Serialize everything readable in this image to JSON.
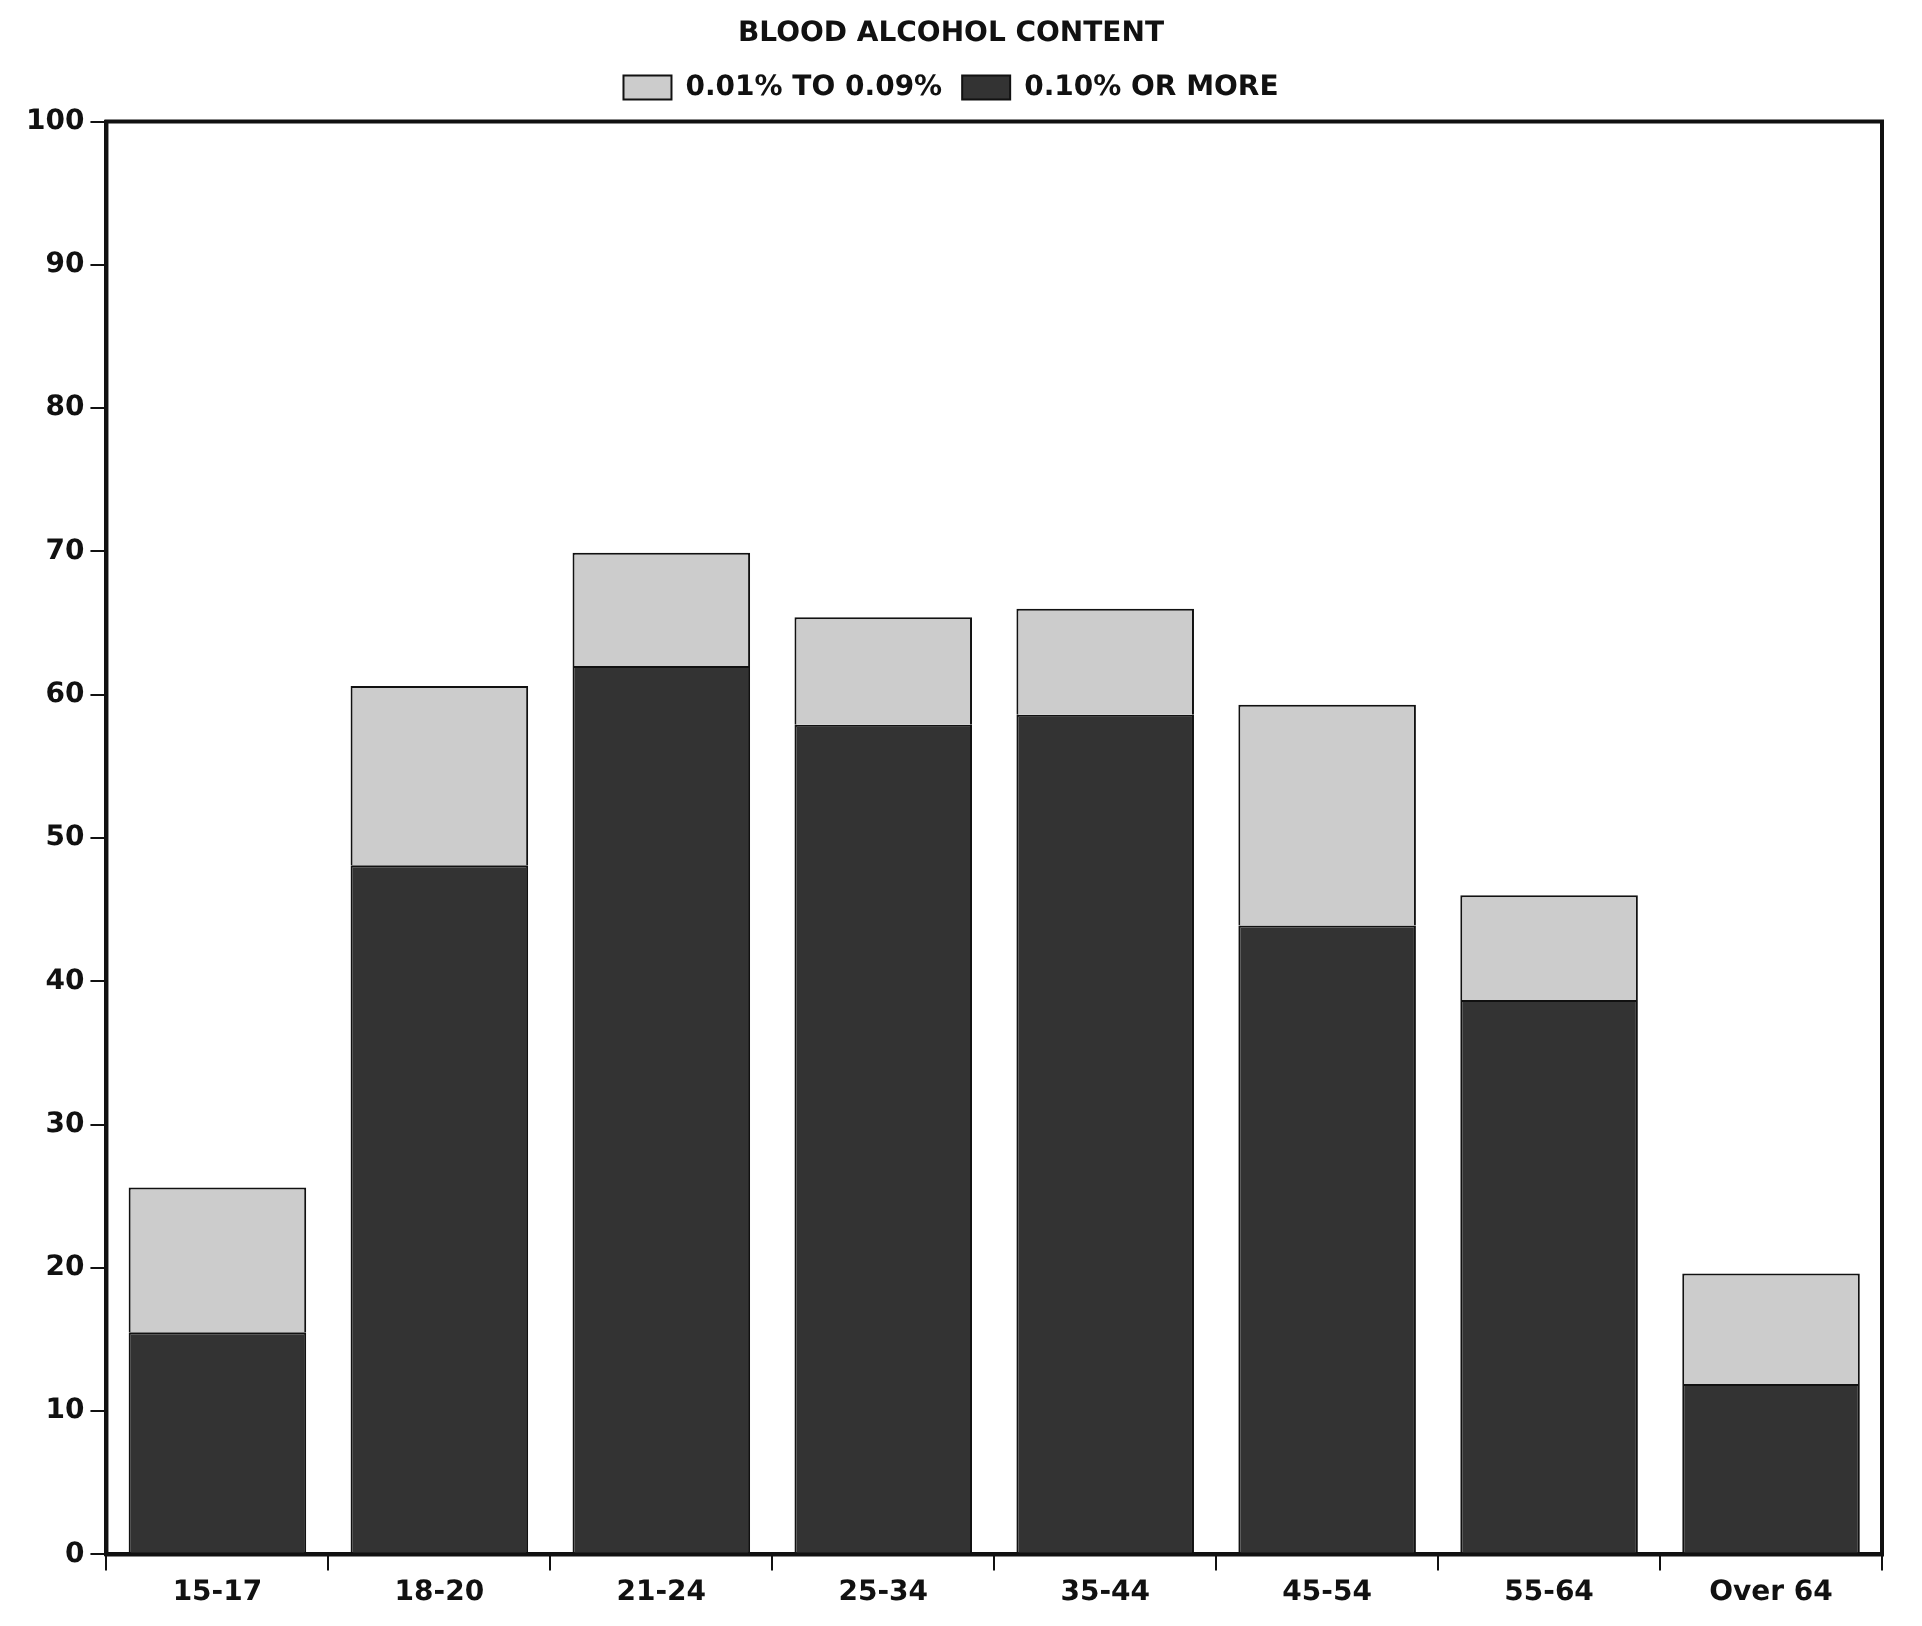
{
  "chart_data": {
    "type": "bar",
    "stacked": true,
    "legend_title": "BLOOD ALCOHOL CONTENT",
    "categories": [
      "15-17",
      "18-20",
      "21-24",
      "25-34",
      "35-44",
      "45-54",
      "55-64",
      "Over 64"
    ],
    "series": [
      {
        "name": "0.10% OR MORE",
        "color": "#333333",
        "values": [
          15.5,
          48.1,
          62.0,
          57.9,
          58.6,
          43.9,
          38.7,
          11.9
        ]
      },
      {
        "name": "0.01% TO 0.09%",
        "color": "#cccccc",
        "values": [
          10.1,
          12.5,
          7.9,
          7.5,
          7.4,
          15.4,
          7.3,
          7.7
        ]
      }
    ],
    "ylim": [
      0,
      100
    ],
    "yticks": [
      0,
      10,
      20,
      30,
      40,
      50,
      60,
      70,
      80,
      90,
      100
    ],
    "grid": false,
    "legend": "top"
  }
}
